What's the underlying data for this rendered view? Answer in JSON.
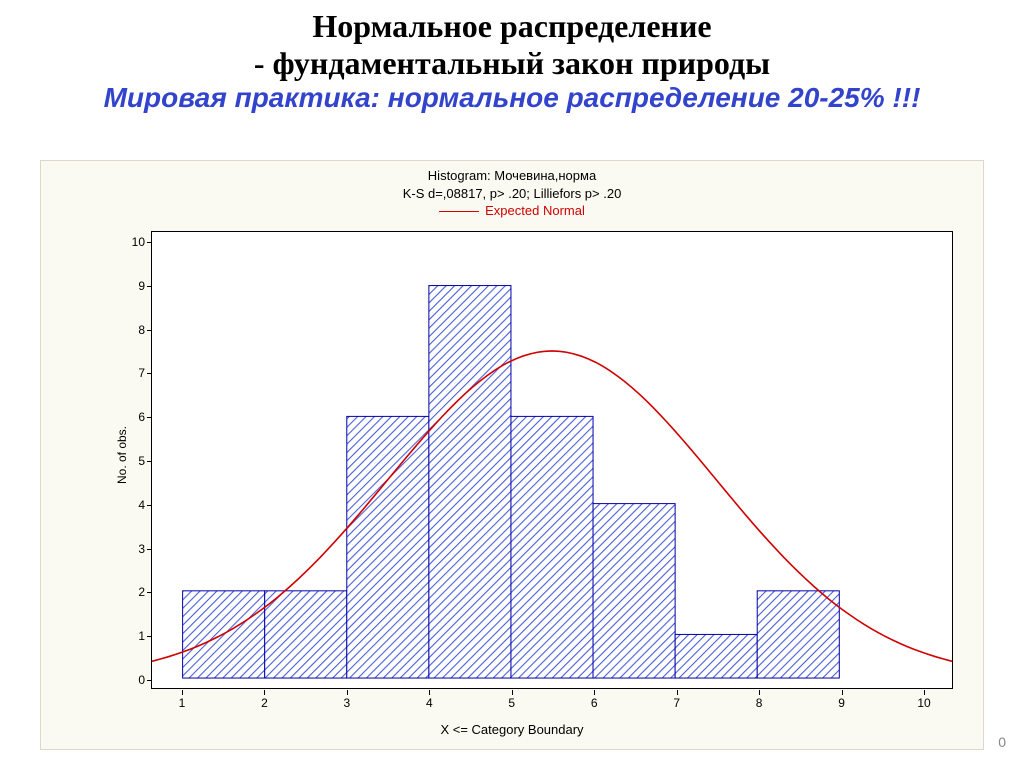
{
  "title_line1": "Нормальное распределение",
  "title_line2": "- фундаментальный закон природы",
  "subtitle": "Мировая практика: нормальное распределение 20-25% !!!",
  "subtitle_color": "#3344cc",
  "page_number": "0",
  "chart": {
    "type": "histogram",
    "title_1": "Histogram: Мочевина,норма",
    "title_2": "K-S d=,08817, p> .20; Lilliefors p> .20",
    "legend_label": "Expected Normal",
    "legend_color": "#d00000",
    "xlabel": "X <= Category Boundary",
    "ylabel": "No. of obs.",
    "background_color": "#fafaf2",
    "plot_background": "#ffffff",
    "axis_color": "#000000",
    "bar_fill_color": "#4a5ed6",
    "bar_border_color": "#0000aa",
    "bar_hatch": true,
    "x_ticks": [
      1,
      2,
      3,
      4,
      5,
      6,
      7,
      8,
      9,
      10
    ],
    "y_ticks": [
      0,
      1,
      2,
      3,
      4,
      5,
      6,
      7,
      8,
      9,
      10
    ],
    "ylim": [
      0,
      10
    ],
    "xlim_categories": [
      1,
      10
    ],
    "bars": [
      {
        "x_end": 2,
        "value": 2
      },
      {
        "x_end": 3,
        "value": 2
      },
      {
        "x_end": 4,
        "value": 6
      },
      {
        "x_end": 5,
        "value": 9
      },
      {
        "x_end": 6,
        "value": 6
      },
      {
        "x_end": 7,
        "value": 4
      },
      {
        "x_end": 8,
        "value": 1
      },
      {
        "x_end": 9,
        "value": 2
      }
    ],
    "normal_curve": {
      "mean": 5.5,
      "stdev": 2.0,
      "peak_value": 7.5,
      "color": "#d00000",
      "width": 1.6
    },
    "title_fontsize": 13,
    "label_fontsize": 12,
    "tick_fontsize": 12
  }
}
